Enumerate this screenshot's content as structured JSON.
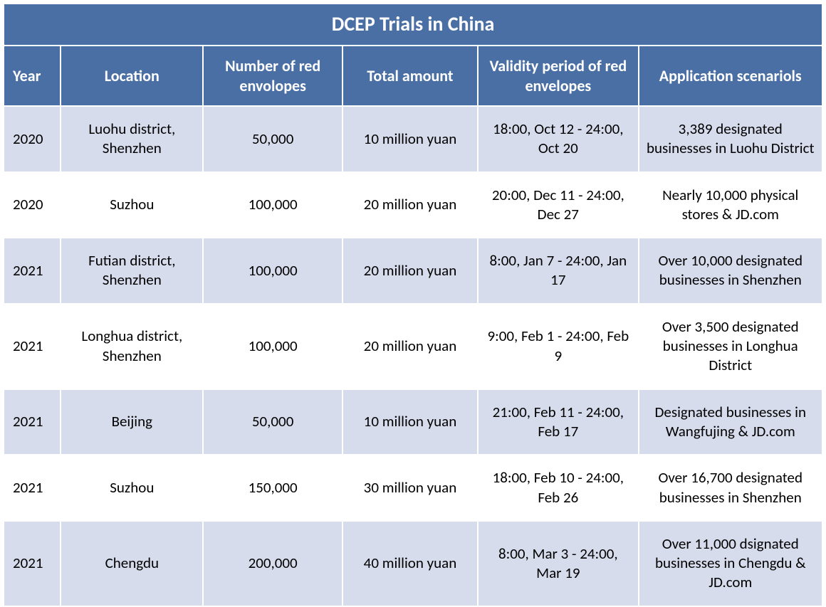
{
  "table": {
    "title": "DCEP Trials in China",
    "title_bg": "#4a6fa5",
    "title_color": "#ffffff",
    "header_bg": "#4a6fa5",
    "header_color": "#ffffff",
    "row_alt_bg": "#d6dcec",
    "row_bg": "#ffffff",
    "text_color": "#000000",
    "columns": {
      "year": "Year",
      "location": "Location",
      "envelopes": "Number of red envolopes",
      "amount": "Total amount",
      "validity": "Validity period of red envelopes",
      "scenarios": "Application scenariols"
    },
    "rows": [
      {
        "year": "2020",
        "location": "Luohu district, Shenzhen",
        "envelopes": "50,000",
        "amount": "10 million yuan",
        "validity": "18:00, Oct 12 - 24:00, Oct 20",
        "scenarios": "3,389 designated businesses in Luohu District"
      },
      {
        "year": "2020",
        "location": "Suzhou",
        "envelopes": "100,000",
        "amount": "20 million yuan",
        "validity": "20:00, Dec 11 - 24:00, Dec 27",
        "scenarios": "Nearly 10,000 physical stores & JD.com"
      },
      {
        "year": "2021",
        "location": "Futian district, Shenzhen",
        "envelopes": "100,000",
        "amount": "20 million yuan",
        "validity": "8:00, Jan 7 - 24:00, Jan 17",
        "scenarios": "Over 10,000 designated businesses in Shenzhen"
      },
      {
        "year": "2021",
        "location": "Longhua district, Shenzhen",
        "envelopes": "100,000",
        "amount": "20 million yuan",
        "validity": "9:00, Feb 1 - 24:00, Feb 9",
        "scenarios": "Over 3,500 designated businesses in Longhua District"
      },
      {
        "year": "2021",
        "location": "Beijing",
        "envelopes": "50,000",
        "amount": "10 million yuan",
        "validity": "21:00, Feb 11 - 24:00, Feb 17",
        "scenarios": "Designated businesses in Wangfujing & JD.com"
      },
      {
        "year": "2021",
        "location": "Suzhou",
        "envelopes": "150,000",
        "amount": "30 million yuan",
        "validity": "18:00, Feb 10 - 24:00, Feb 26",
        "scenarios": "Over 16,700 designated businesses in Shenzhen"
      },
      {
        "year": "2021",
        "location": "Chengdu",
        "envelopes": "200,000",
        "amount": "40 million yuan",
        "validity": "8:00, Mar 3 - 24:00, Mar 19",
        "scenarios": "Over 11,000 dsignated businesses in Chengdu & JD.com"
      }
    ]
  }
}
